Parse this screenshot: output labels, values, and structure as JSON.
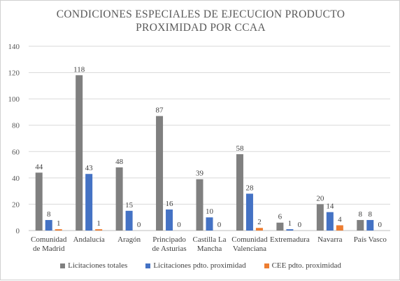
{
  "chart_data": {
    "type": "bar",
    "title_lines": [
      "CONDICIONES ESPECIALES DE EJECUCION PRODUCTO",
      "PROXIMIDAD POR CCAA"
    ],
    "categories": [
      [
        "Comunidad",
        "de Madrid"
      ],
      [
        "Andalucía"
      ],
      [
        "Aragón"
      ],
      [
        "Principado",
        "de Asturias"
      ],
      [
        "Castilla La",
        "Mancha"
      ],
      [
        "Comunidad",
        "Valenciana"
      ],
      [
        "Extremadura"
      ],
      [
        "Navarra"
      ],
      [
        "País Vasco"
      ]
    ],
    "series": [
      {
        "name": "Licitaciones totales",
        "color": "#808080",
        "values": [
          44,
          118,
          48,
          87,
          39,
          58,
          6,
          20,
          8
        ]
      },
      {
        "name": "Licitaciones pdto. proximidad",
        "color": "#4472C4",
        "values": [
          8,
          43,
          15,
          16,
          10,
          28,
          1,
          14,
          8
        ]
      },
      {
        "name": "CEE pdto. proximidad",
        "color": "#ED7D31",
        "values": [
          1,
          1,
          0,
          0,
          0,
          2,
          0,
          4,
          0
        ]
      }
    ],
    "y_ticks": [
      "0",
      "20",
      "40",
      "60",
      "80",
      "100",
      "120",
      "140"
    ],
    "ylim": [
      0,
      140
    ],
    "grid": true,
    "legend_position": "bottom"
  }
}
